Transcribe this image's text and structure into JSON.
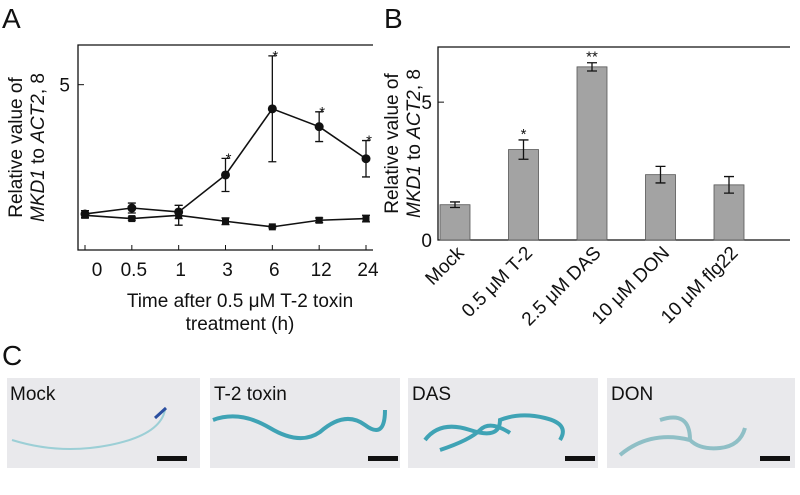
{
  "chart_data": [
    {
      "type": "line",
      "panel": "A",
      "ylabel": {
        "line1": "Relative value of",
        "line2": [
          {
            "text": "MKD1",
            "italic": true
          },
          {
            "text": " to "
          },
          {
            "text": "ACT2",
            "italic": true
          },
          {
            "text": ", 8"
          }
        ]
      },
      "xlabel": [
        "Time after 0.5 μM T-2 toxin",
        "treatment (h)"
      ],
      "categories": [
        "0",
        "0.5",
        "1",
        "3",
        "6",
        "12",
        "24"
      ],
      "series": [
        {
          "marker": "circle",
          "color": "#111111",
          "values": [
            1.09,
            1.27,
            1.15,
            2.27,
            4.27,
            3.73,
            2.76
          ],
          "errors": [
            0.1,
            0.15,
            0.2,
            0.5,
            1.6,
            0.45,
            0.55
          ],
          "significance": [
            null,
            null,
            null,
            "*",
            "*",
            "*",
            "*"
          ]
        },
        {
          "marker": "square",
          "color": "#111111",
          "values": [
            1.05,
            0.95,
            1.05,
            0.87,
            0.7,
            0.9,
            0.95
          ],
          "errors": [
            0.08,
            0.05,
            0.3,
            0.1,
            0.03,
            0.07,
            0.1
          ]
        }
      ],
      "ylim": [
        0,
        6.2
      ],
      "yticks": [
        5
      ]
    },
    {
      "type": "bar",
      "panel": "B",
      "ylabel": {
        "line1": "Relative value of",
        "line2": [
          {
            "text": "MKD1",
            "italic": true
          },
          {
            "text": " to "
          },
          {
            "text": "ACT2",
            "italic": true
          },
          {
            "text": ", 8"
          }
        ]
      },
      "categories": [
        "Mock",
        "0.5 μM T-2",
        "2.5 μM DAS",
        "10 μM DON",
        "10 μM flg22"
      ],
      "values": [
        1.28,
        3.28,
        6.28,
        2.37,
        2.0
      ],
      "errors": [
        0.1,
        0.35,
        0.15,
        0.3,
        0.3
      ],
      "significance": [
        null,
        "*",
        "**",
        null,
        null
      ],
      "color": "#a3a3a3",
      "ylim": [
        0,
        7
      ],
      "yticks": [
        0,
        5
      ]
    }
  ],
  "panel_c": {
    "panel": "C",
    "images": [
      {
        "label": "Mock"
      },
      {
        "label": "T-2 toxin"
      },
      {
        "label": "DAS"
      },
      {
        "label": "DON"
      }
    ]
  }
}
